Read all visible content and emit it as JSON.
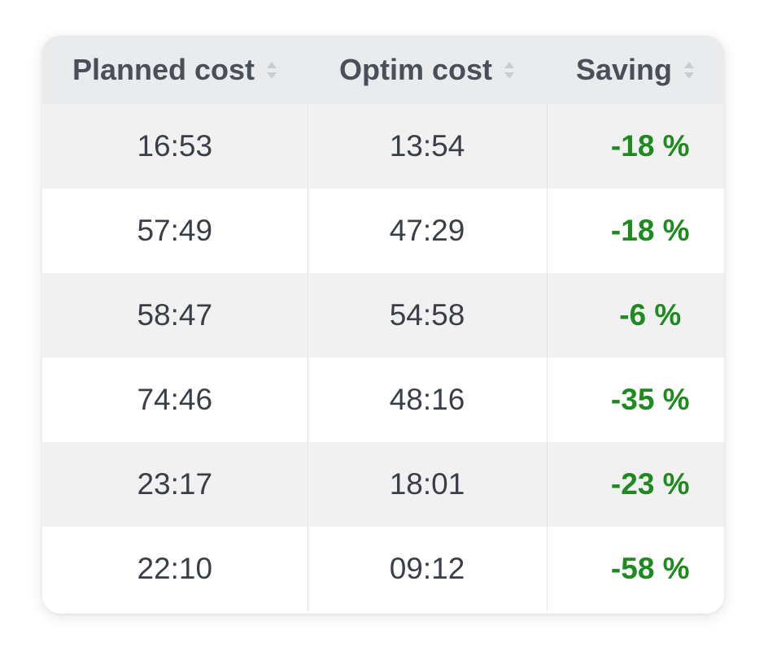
{
  "table": {
    "headers": [
      "Planned cost",
      "Optim cost",
      "Saving"
    ],
    "rows": [
      {
        "planned": "16:53",
        "optim": "13:54",
        "saving": "-18 %"
      },
      {
        "planned": "57:49",
        "optim": "47:29",
        "saving": "-18 %"
      },
      {
        "planned": "58:47",
        "optim": "54:58",
        "saving": "-6 %"
      },
      {
        "planned": "74:46",
        "optim": "48:16",
        "saving": "-35 %"
      },
      {
        "planned": "23:17",
        "optim": "18:01",
        "saving": "-23 %"
      },
      {
        "planned": "22:10",
        "optim": "09:12",
        "saving": "-58 %"
      }
    ],
    "sort_icon": "sort-both-icon"
  },
  "colors": {
    "header_bg": "#e9ebed",
    "odd_row_bg": "#f1f1f1",
    "even_row_bg": "#ffffff",
    "saving_text": "#1f8a1f",
    "body_text": "#3a3f47"
  }
}
